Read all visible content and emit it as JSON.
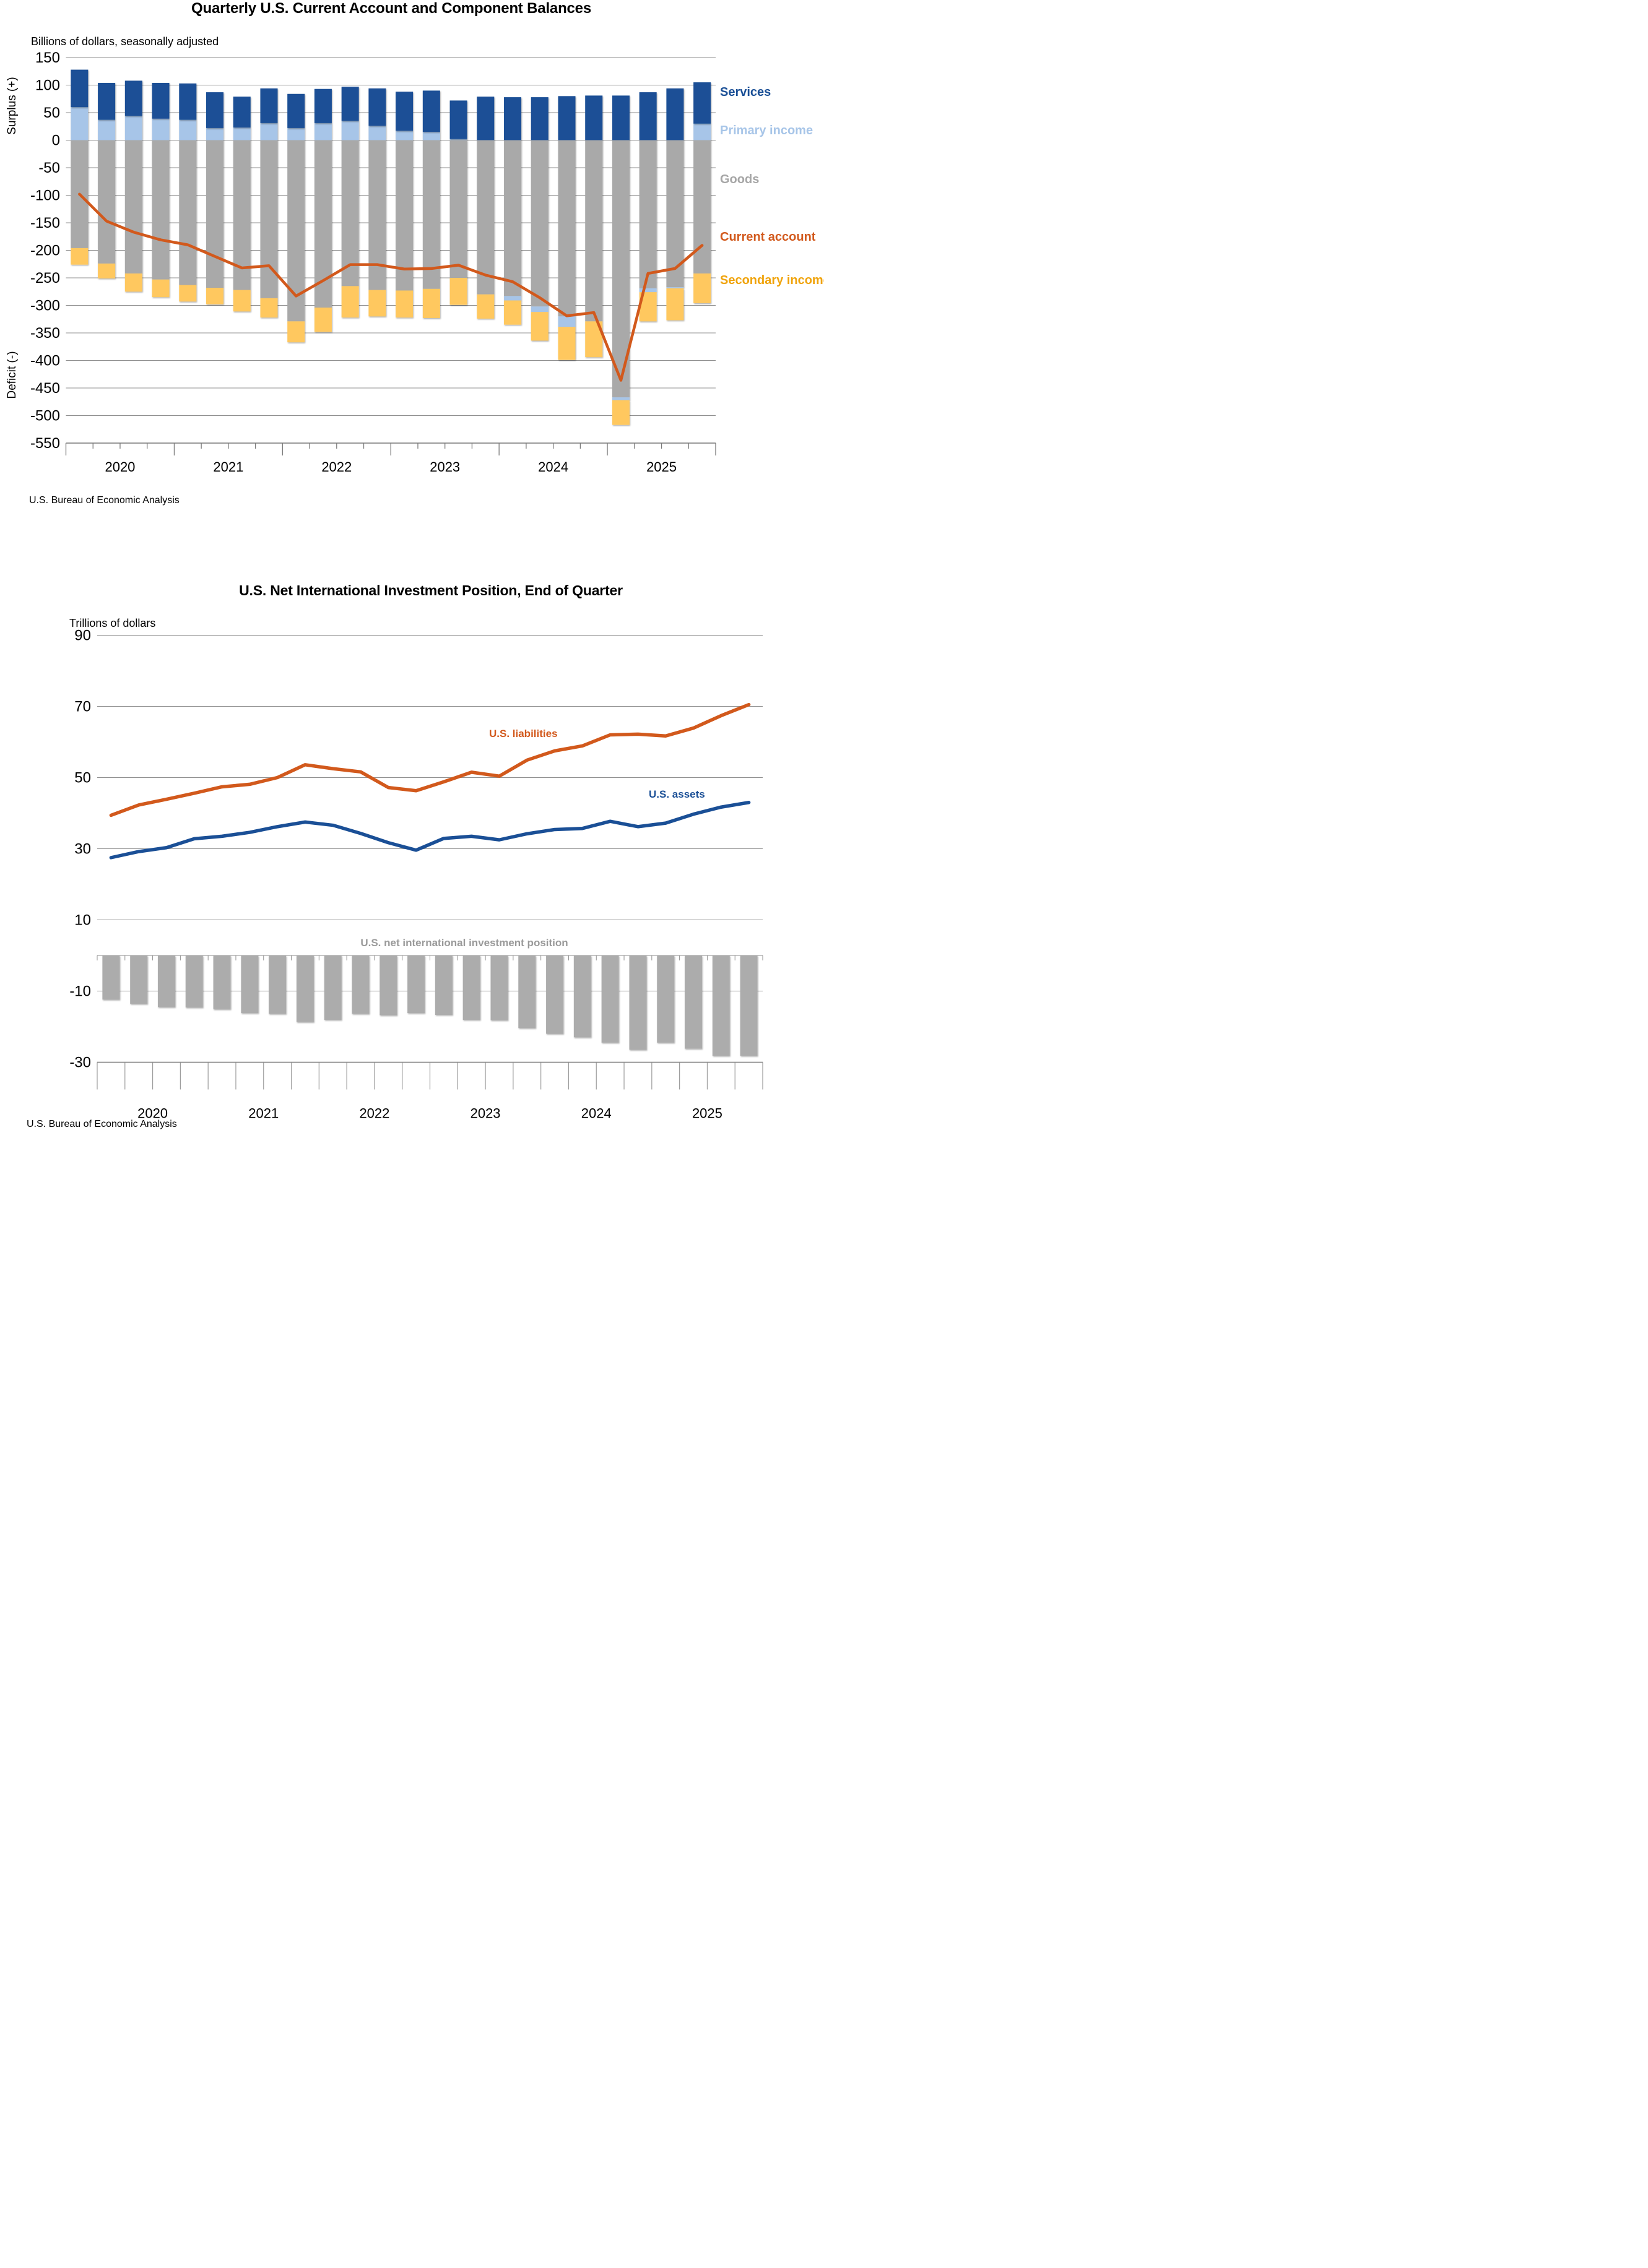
{
  "page_background": "#ffffff",
  "chart_data": [
    {
      "id": "current-account",
      "type": "bar",
      "stacked": true,
      "title": "Quarterly U.S. Current Account and Component Balances",
      "units": "Billions of dollars, seasonally adjusted",
      "axis_labels": {
        "surplus": "Surplus (+)",
        "deficit": "Deficit (-)"
      },
      "source": "U.S. Bureau of Economic Analysis",
      "years": [
        "2020",
        "2021",
        "2022",
        "2023",
        "2024",
        "2025"
      ],
      "categories": [
        "2020 Q1",
        "2020 Q2",
        "2020 Q3",
        "2020 Q4",
        "2021 Q1",
        "2021 Q2",
        "2021 Q3",
        "2021 Q4",
        "2022 Q1",
        "2022 Q2",
        "2022 Q3",
        "2022 Q4",
        "2023 Q1",
        "2023 Q2",
        "2023 Q3",
        "2023 Q4",
        "2024 Q1",
        "2024 Q2",
        "2024 Q3",
        "2024 Q4",
        "2025 Q1",
        "2025 Q2",
        "2025 Q3",
        "2025 Q4"
      ],
      "y_ticks": [
        150,
        100,
        50,
        0,
        -50,
        -100,
        -150,
        -200,
        -250,
        -300,
        -350,
        -400,
        -450,
        -500,
        -550
      ],
      "ylim": [
        -550,
        150
      ],
      "grid": true,
      "legend_position": "right",
      "legend": [
        {
          "label": "Services",
          "color": "#1A4F96"
        },
        {
          "label": "Primary income",
          "color": "#A7C5E8"
        },
        {
          "label": "Goods",
          "color": "#A9A9A9"
        },
        {
          "label": "Current account",
          "color": "#D2591C"
        },
        {
          "label": "Secondary income",
          "color": "#FFC85E"
        }
      ],
      "series": [
        {
          "name": "Services",
          "type": "bar",
          "color": "#1A4F96",
          "values": [
            68,
            67,
            64,
            65,
            66,
            65,
            56,
            63,
            62,
            62,
            62,
            68,
            71,
            75,
            70,
            79,
            78,
            78,
            80,
            81,
            81,
            87,
            94,
            75
          ]
        },
        {
          "name": "Primary income",
          "type": "bar",
          "color": "#A7C5E8",
          "values": [
            60,
            37,
            44,
            39,
            37,
            22,
            23,
            31,
            22,
            31,
            35,
            26,
            17,
            15,
            2,
            0,
            -8,
            -10,
            -19,
            0,
            -5,
            -7,
            -2,
            30
          ]
        },
        {
          "name": "Goods",
          "type": "bar",
          "color": "#A9A9A9",
          "values": [
            -196,
            -224,
            -242,
            -253,
            -263,
            -268,
            -272,
            -287,
            -329,
            -304,
            -265,
            -272,
            -273,
            -270,
            -250,
            -280,
            -283,
            -302,
            -320,
            -329,
            -467,
            -269,
            -267,
            -242
          ]
        },
        {
          "name": "Secondary income",
          "type": "bar",
          "color": "#FFC85E",
          "values": [
            -30,
            -27,
            -33,
            -32,
            -30,
            -30,
            -39,
            -35,
            -38,
            -44,
            -57,
            -48,
            -49,
            -53,
            -49,
            -44,
            -44,
            -52,
            -60,
            -65,
            -45,
            -53,
            -58,
            -54
          ]
        },
        {
          "name": "Current account",
          "type": "line",
          "color": "#D2591C",
          "values": [
            -98,
            -147,
            -167,
            -181,
            -190,
            -211,
            -232,
            -228,
            -283,
            -255,
            -226,
            -226,
            -234,
            -233,
            -227,
            -245,
            -257,
            -286,
            -319,
            -313,
            -436,
            -242,
            -233,
            -191
          ]
        }
      ]
    },
    {
      "id": "niip",
      "type": "line",
      "title": "U.S. Net International Investment Position, End of Quarter",
      "units": "Trillions of dollars",
      "source": "U.S. Bureau of Economic Analysis",
      "years": [
        "2020",
        "2021",
        "2022",
        "2023",
        "2024",
        "2025"
      ],
      "categories": [
        "2020 Q1",
        "2020 Q2",
        "2020 Q3",
        "2020 Q4",
        "2021 Q1",
        "2021 Q2",
        "2021 Q3",
        "2021 Q4",
        "2022 Q1",
        "2022 Q2",
        "2022 Q3",
        "2022 Q4",
        "2023 Q1",
        "2023 Q2",
        "2023 Q3",
        "2023 Q4",
        "2024 Q1",
        "2024 Q2",
        "2024 Q3",
        "2024 Q4",
        "2025 Q1",
        "2025 Q2",
        "2025 Q3",
        "2025 Q4"
      ],
      "y_ticks": [
        90,
        70,
        50,
        30,
        10,
        -10,
        -30
      ],
      "ylim": [
        -30,
        90
      ],
      "grid": true,
      "annotations": {
        "liabilities": "U.S. liabilities",
        "assets": "U.S. assets",
        "niip": "U.S. net international investment position"
      },
      "series": [
        {
          "name": "U.S. liabilities",
          "type": "line",
          "color": "#D2591C",
          "values": [
            39.4,
            42.3,
            43.9,
            45.6,
            47.4,
            48.1,
            50,
            53.6,
            52.5,
            51.6,
            47.2,
            46.3,
            48.8,
            51.5,
            50.4,
            54.9,
            57.5,
            58.9,
            62,
            62.2,
            61.7,
            63.9,
            67.4,
            70.5
          ]
        },
        {
          "name": "U.S. assets",
          "type": "line",
          "color": "#1A4F96",
          "values": [
            27.5,
            29.2,
            30.3,
            32.8,
            33.5,
            34.6,
            36.2,
            37.5,
            36.6,
            34.3,
            31.7,
            29.6,
            32.9,
            33.5,
            32.5,
            34.2,
            35.4,
            35.7,
            37.7,
            36.2,
            37.2,
            39.7,
            41.7,
            43
          ]
        },
        {
          "name": "U.S. net international investment position",
          "type": "bar",
          "color": "#ACACAC",
          "values": [
            -12.4,
            -13.6,
            -14.5,
            -14.6,
            -15.1,
            -16.2,
            -16.4,
            -18.7,
            -18.1,
            -16.4,
            -16.8,
            -16.2,
            -16.7,
            -18.1,
            -18.2,
            -20.4,
            -22,
            -23,
            -24.5,
            -26.5,
            -24.5,
            -26.2,
            -28.2,
            -28.2
          ]
        }
      ]
    }
  ],
  "style_colors": {
    "gridline": "#8F8F8F",
    "axis": "#7A7A7A",
    "text": "#000000"
  }
}
